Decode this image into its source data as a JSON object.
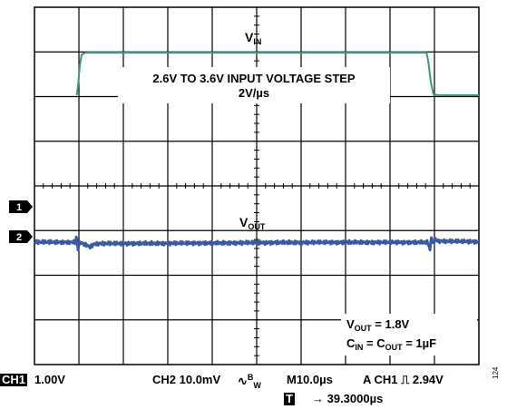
{
  "chart_data": {
    "type": "line",
    "title": "",
    "grid": {
      "xdivs": 10,
      "ydivs": 8,
      "minor_ticks": true
    },
    "x_unit": "div",
    "series": [
      {
        "name": "VIN",
        "color": "#3a9a6a",
        "values": [
          [
            0.95,
            2.6
          ],
          [
            0.98,
            2.8
          ],
          [
            1.02,
            3.3
          ],
          [
            1.06,
            3.55
          ],
          [
            1.15,
            3.6
          ],
          [
            8.82,
            3.6
          ],
          [
            8.86,
            3.4
          ],
          [
            8.92,
            2.9
          ],
          [
            8.98,
            2.62
          ],
          [
            9.1,
            2.6
          ],
          [
            10,
            2.6
          ]
        ]
      },
      {
        "name": "VOUT",
        "color": "#3a5aa0",
        "values": [
          [
            0,
            1.5
          ],
          [
            0.92,
            1.5
          ],
          [
            0.94,
            3.8
          ],
          [
            0.96,
            1.8
          ],
          [
            0.98,
            -2.0
          ],
          [
            1.0,
            0.5
          ],
          [
            1.05,
            1.2
          ],
          [
            1.15,
            0.0
          ],
          [
            1.25,
            -1.0
          ],
          [
            1.35,
            0.5
          ],
          [
            1.45,
            0.7
          ],
          [
            2.5,
            0.8
          ],
          [
            4.0,
            1.0
          ],
          [
            5.5,
            1.3
          ],
          [
            7.0,
            1.4
          ],
          [
            8.85,
            1.4
          ],
          [
            8.9,
            -3.0
          ],
          [
            8.93,
            5.0
          ],
          [
            8.96,
            0.8
          ],
          [
            9.02,
            2.8
          ],
          [
            9.1,
            2.1
          ],
          [
            9.5,
            1.9
          ],
          [
            10,
            1.8
          ]
        ]
      }
    ]
  },
  "annotations": {
    "vin_label": "V",
    "vin_sub": "IN",
    "step_line1": "2.6V TO 3.6V INPUT VOLTAGE STEP",
    "step_line2": "2V/µs",
    "vout_label": "V",
    "vout_sub": "OUT",
    "cond_vout": "V",
    "cond_vout_sub": "OUT",
    "cond_vout_val": " = 1.8V",
    "cond_cin": "C",
    "cond_cin_sub": "IN",
    "cond_eq": " = C",
    "cond_cout_sub": "OUT",
    "cond_cap_val": " = 1µF"
  },
  "markers": {
    "ch1": "1",
    "ch2": "2"
  },
  "footer": {
    "ch1_badge": "CH1",
    "ch1_scale": "1.00V",
    "ch2_scale": "CH2 10.0mV",
    "bw_symbol": "B",
    "bw_sub": "W",
    "timebase": "M10.0µs",
    "trigger": "A  CH1 ⎍ 2.94V",
    "t_badge": "T",
    "t_offset": "→ 39.3000µs"
  },
  "figure_id": "124"
}
